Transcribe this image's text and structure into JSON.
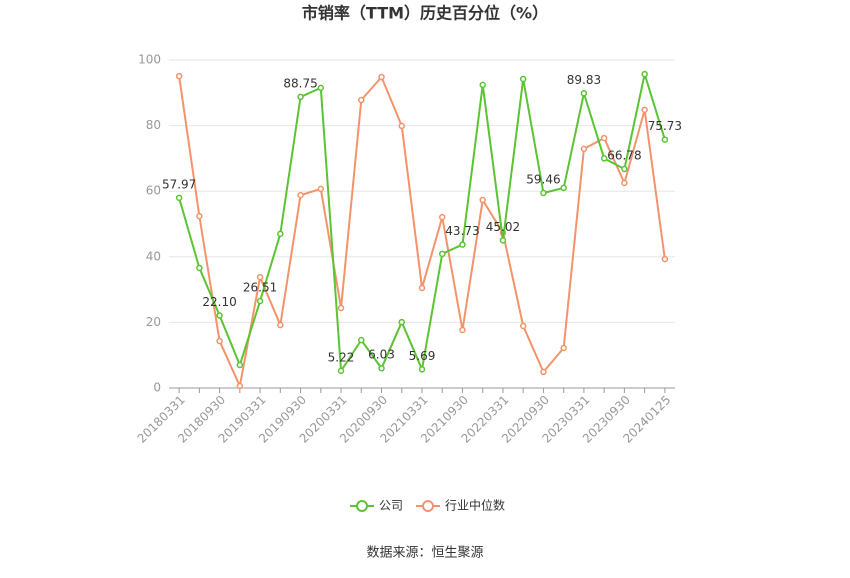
{
  "chart_data": {
    "type": "line",
    "title": "市销率（TTM）历史百分位（%）",
    "source": "数据来源：恒生聚源",
    "categories": [
      "20180331",
      null,
      "20180930",
      null,
      "20190331",
      null,
      "20190930",
      null,
      "20200331",
      null,
      "20200930",
      null,
      "20210331",
      null,
      "20210930",
      null,
      "20220331",
      null,
      "20220930",
      null,
      "20230331",
      null,
      "20230930",
      null,
      "20240125"
    ],
    "series": [
      {
        "name": "公司",
        "color": "#5bc433",
        "values": [
          57.97,
          36.6,
          22.1,
          7,
          26.51,
          47,
          88.75,
          91.5,
          5.22,
          14.6,
          6.03,
          20.1,
          5.69,
          40.9,
          43.73,
          92.4,
          45.02,
          94.2,
          59.46,
          61,
          89.83,
          70,
          66.78,
          95.7,
          75.73
        ],
        "value_labels": [
          "57.97",
          null,
          "22.10",
          null,
          "26.51",
          null,
          "88.75",
          null,
          "5.22",
          null,
          "6.03",
          null,
          "5.69",
          null,
          "43.73",
          null,
          "45.02",
          null,
          "59.46",
          null,
          "89.83",
          null,
          "66.78",
          null,
          "75.73"
        ]
      },
      {
        "name": "行业中位数",
        "color": "#f4936b",
        "values": [
          95.1,
          52.4,
          14.3,
          0.6,
          33.8,
          19.2,
          58.8,
          60.7,
          24.4,
          87.8,
          94.8,
          79.9,
          30.5,
          52.1,
          17.7,
          57.3,
          47.3,
          18.9,
          4.9,
          12.2,
          72.9,
          76.2,
          62.5,
          84.8,
          39.3
        ]
      }
    ],
    "ylim": [
      0,
      100
    ],
    "yticks": [
      0,
      20,
      40,
      60,
      80,
      100
    ],
    "grid": true
  }
}
